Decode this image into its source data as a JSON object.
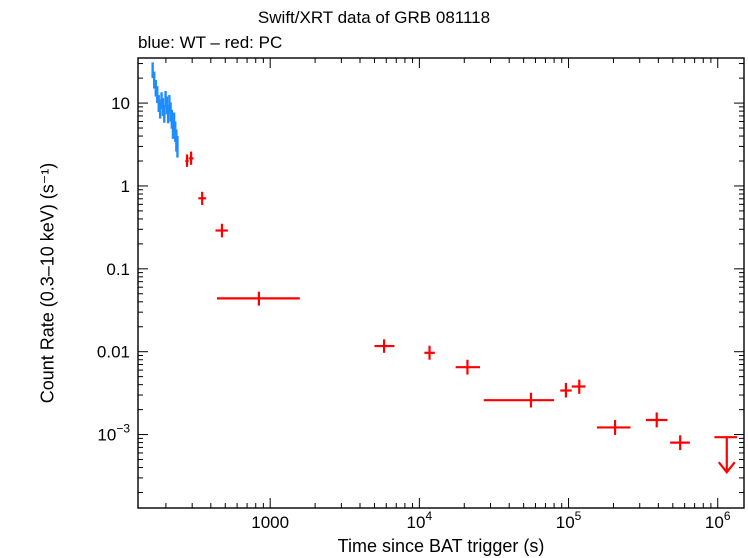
{
  "chart_data": {
    "type": "scatter",
    "title": "Swift/XRT data of GRB 081118",
    "subtitle": "blue: WT – red: PC",
    "xlabel": "Time since BAT trigger (s)",
    "ylabel": "Count Rate (0.3–10 keV) (s⁻¹)",
    "x_scale": "log",
    "y_scale": "log",
    "xlim": [
      130,
      1500000
    ],
    "ylim": [
      0.00013,
      35
    ],
    "x_ticks": [
      {
        "value": 1000,
        "label": "1000",
        "exp": ""
      },
      {
        "value": 10000,
        "label": "10",
        "exp": "4"
      },
      {
        "value": 100000,
        "label": "10",
        "exp": "5"
      },
      {
        "value": 1000000,
        "label": "10",
        "exp": "6"
      }
    ],
    "y_ticks": [
      {
        "value": 10,
        "label": "10",
        "exp": ""
      },
      {
        "value": 1,
        "label": "1",
        "exp": ""
      },
      {
        "value": 0.1,
        "label": "0.1",
        "exp": ""
      },
      {
        "value": 0.01,
        "label": "0.01",
        "exp": ""
      },
      {
        "value": 0.001,
        "label": "10",
        "exp": "−3"
      }
    ],
    "colors": {
      "WT": "#1e8cff",
      "PC": "#ff0000",
      "axis": "#000000"
    },
    "series": [
      {
        "name": "WT",
        "color": "#1e8cff",
        "points": [
          {
            "x": 163,
            "xlo": 161,
            "xhi": 165,
            "y": 25.0,
            "ylo": 20.0,
            "yhi": 31.0
          },
          {
            "x": 167,
            "xlo": 165,
            "xhi": 169,
            "y": 19.0,
            "ylo": 15.0,
            "yhi": 24.0
          },
          {
            "x": 171,
            "xlo": 169,
            "xhi": 173,
            "y": 15.0,
            "ylo": 12.0,
            "yhi": 19.0
          },
          {
            "x": 175,
            "xlo": 173,
            "xhi": 177,
            "y": 13.0,
            "ylo": 10.0,
            "yhi": 16.0
          },
          {
            "x": 179,
            "xlo": 177,
            "xhi": 181,
            "y": 10.0,
            "ylo": 7.8,
            "yhi": 12.5
          },
          {
            "x": 183,
            "xlo": 181,
            "xhi": 185,
            "y": 8.5,
            "ylo": 6.5,
            "yhi": 11.0
          },
          {
            "x": 187,
            "xlo": 185,
            "xhi": 189,
            "y": 11.0,
            "ylo": 8.5,
            "yhi": 13.5
          },
          {
            "x": 191,
            "xlo": 189,
            "xhi": 193,
            "y": 9.0,
            "ylo": 7.0,
            "yhi": 11.5
          },
          {
            "x": 195,
            "xlo": 193,
            "xhi": 197,
            "y": 7.5,
            "ylo": 5.8,
            "yhi": 9.5
          },
          {
            "x": 199,
            "xlo": 197,
            "xhi": 201,
            "y": 11.5,
            "ylo": 9.0,
            "yhi": 14.0
          },
          {
            "x": 203,
            "xlo": 201,
            "xhi": 205,
            "y": 9.5,
            "ylo": 7.3,
            "yhi": 12.0
          },
          {
            "x": 207,
            "xlo": 205,
            "xhi": 209,
            "y": 7.5,
            "ylo": 5.7,
            "yhi": 9.5
          },
          {
            "x": 211,
            "xlo": 209,
            "xhi": 213,
            "y": 10.0,
            "ylo": 7.7,
            "yhi": 12.5
          },
          {
            "x": 215,
            "xlo": 213,
            "xhi": 217,
            "y": 8.0,
            "ylo": 6.0,
            "yhi": 10.2
          },
          {
            "x": 219,
            "xlo": 217,
            "xhi": 221,
            "y": 6.5,
            "ylo": 4.9,
            "yhi": 8.3
          },
          {
            "x": 223,
            "xlo": 221,
            "xhi": 225,
            "y": 5.0,
            "ylo": 3.7,
            "yhi": 6.5
          },
          {
            "x": 227,
            "xlo": 225,
            "xhi": 229,
            "y": 6.0,
            "ylo": 4.5,
            "yhi": 7.7
          },
          {
            "x": 231,
            "xlo": 229,
            "xhi": 233,
            "y": 4.6,
            "ylo": 3.4,
            "yhi": 6.0
          },
          {
            "x": 235,
            "xlo": 233,
            "xhi": 237,
            "y": 3.6,
            "ylo": 2.6,
            "yhi": 4.8
          },
          {
            "x": 239,
            "xlo": 237,
            "xhi": 241,
            "y": 3.0,
            "ylo": 2.2,
            "yhi": 4.0
          }
        ]
      },
      {
        "name": "PC",
        "color": "#ff0000",
        "points": [
          {
            "x": 277,
            "xlo": 270,
            "xhi": 284,
            "y": 2.0,
            "ylo": 1.7,
            "yhi": 2.4
          },
          {
            "x": 295,
            "xlo": 284,
            "xhi": 306,
            "y": 2.15,
            "ylo": 1.8,
            "yhi": 2.6
          },
          {
            "x": 350,
            "xlo": 330,
            "xhi": 372,
            "y": 0.71,
            "ylo": 0.59,
            "yhi": 0.85
          },
          {
            "x": 475,
            "xlo": 430,
            "xhi": 520,
            "y": 0.29,
            "ylo": 0.24,
            "yhi": 0.35
          },
          {
            "x": 840,
            "xlo": 440,
            "xhi": 1580,
            "y": 0.044,
            "ylo": 0.036,
            "yhi": 0.053
          },
          {
            "x": 5800,
            "xlo": 5000,
            "xhi": 6800,
            "y": 0.0117,
            "ylo": 0.0097,
            "yhi": 0.0141
          },
          {
            "x": 11700,
            "xlo": 10800,
            "xhi": 12700,
            "y": 0.0097,
            "ylo": 0.008,
            "yhi": 0.0118
          },
          {
            "x": 21000,
            "xlo": 17500,
            "xhi": 25500,
            "y": 0.0065,
            "ylo": 0.0053,
            "yhi": 0.008
          },
          {
            "x": 56000,
            "xlo": 27000,
            "xhi": 80000,
            "y": 0.0026,
            "ylo": 0.00212,
            "yhi": 0.0032
          },
          {
            "x": 96000,
            "xlo": 88000,
            "xhi": 105000,
            "y": 0.0034,
            "ylo": 0.0028,
            "yhi": 0.0042
          },
          {
            "x": 118000,
            "xlo": 105000,
            "xhi": 130000,
            "y": 0.0038,
            "ylo": 0.0031,
            "yhi": 0.0046
          },
          {
            "x": 205000,
            "xlo": 155000,
            "xhi": 260000,
            "y": 0.00122,
            "ylo": 0.00099,
            "yhi": 0.0015
          },
          {
            "x": 390000,
            "xlo": 330000,
            "xhi": 460000,
            "y": 0.0015,
            "ylo": 0.00122,
            "yhi": 0.00185
          },
          {
            "x": 560000,
            "xlo": 480000,
            "xhi": 650000,
            "y": 0.0008,
            "ylo": 0.00065,
            "yhi": 0.00098
          }
        ],
        "upper_limits": [
          {
            "x": 1150000,
            "xlo": 950000,
            "xhi": 1350000,
            "y": 0.00093
          }
        ]
      }
    ]
  }
}
